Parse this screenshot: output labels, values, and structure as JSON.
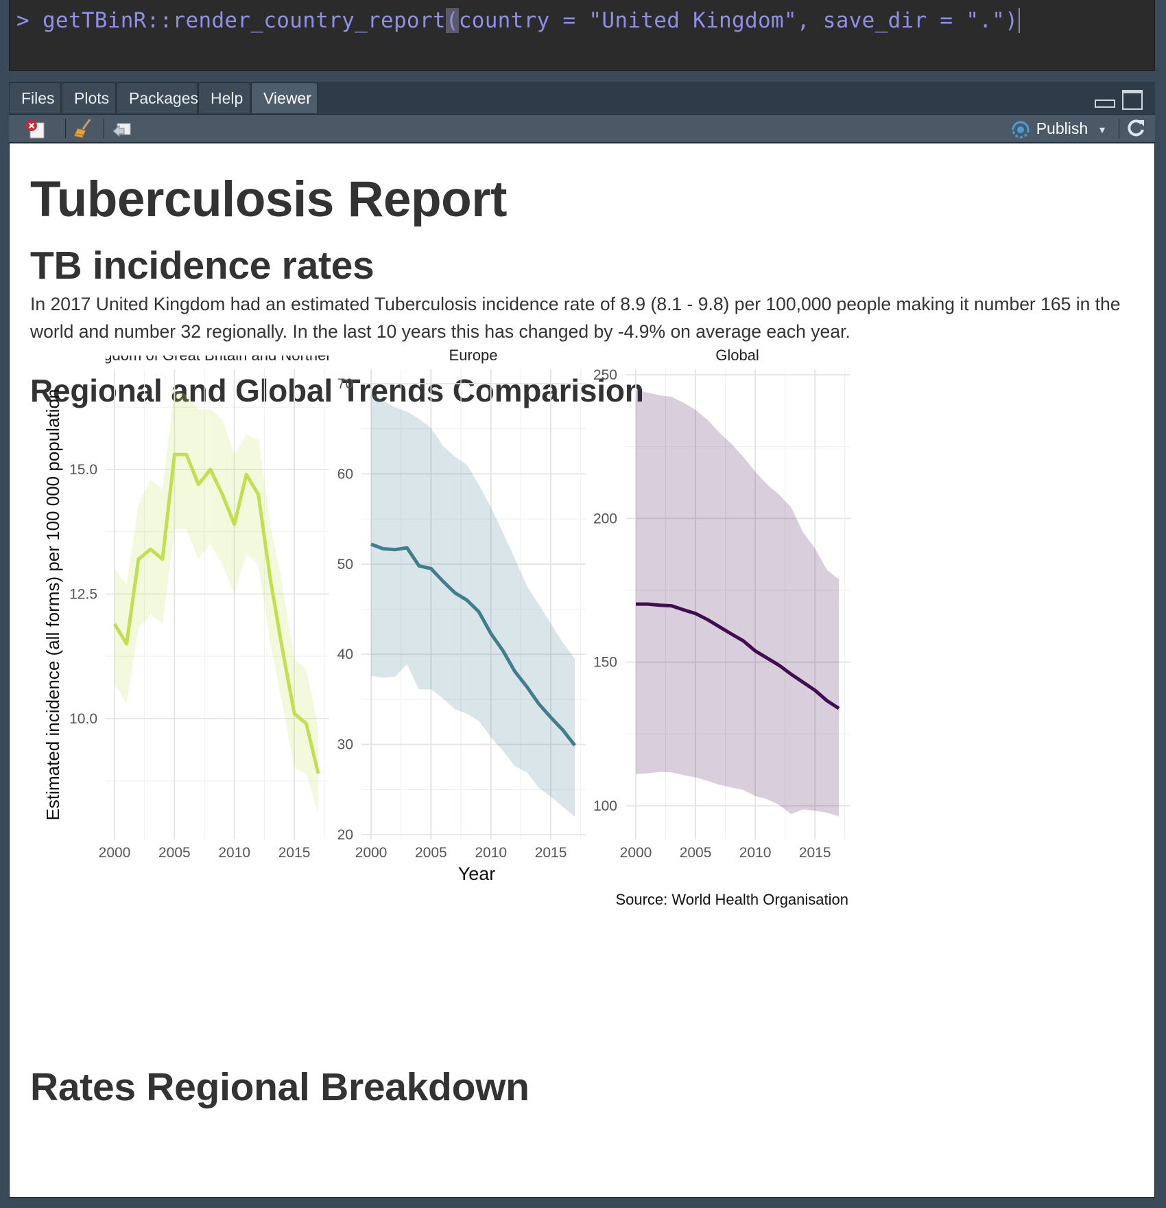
{
  "console": {
    "prompt": ">",
    "code_before": "getTBinR::render_country_report",
    "paren": "(",
    "code_after": "country = \"United Kingdom\", save_dir = \".\")"
  },
  "tabs": [
    "Files",
    "Plots",
    "Packages",
    "Help",
    "Viewer"
  ],
  "active_tab": "Viewer",
  "toolbar": {
    "publish_label": "Publish"
  },
  "report": {
    "title": "Tuberculosis Report",
    "section_incidence": "TB incidence rates",
    "summary": "In 2017 United Kingdom had an estimated Tuberculosis incidence rate of 8.9 (8.1 - 9.8) per 100,000 people making it number 165 in the world and number 32 regionally. In the last 10 years this has changed by -4.9% on average each year.",
    "section_trends": "Regional and Global Trends Comparision",
    "section_breakdown": "Rates Regional Breakdown"
  },
  "chart_data": [
    {
      "type": "line",
      "title": "United Kingdom of Great Britain and Northern Ireland",
      "title_visible": "ngdom of Great Britain and Northern",
      "ylabel": "Estimated incidence (all forms) per 100 000 population",
      "xlabel": "Year",
      "color": "#c2df4e",
      "ylim": [
        7.5,
        17.2
      ],
      "yticks": [
        "10.0",
        "12.5",
        "15.0"
      ],
      "xticks": [
        "2000",
        "2005",
        "2010",
        "2015"
      ],
      "x": [
        2000,
        2001,
        2002,
        2003,
        2004,
        2005,
        2006,
        2007,
        2008,
        2009,
        2010,
        2011,
        2012,
        2013,
        2014,
        2015,
        2016,
        2017
      ],
      "series": [
        {
          "values": [
            11.9,
            11.5,
            13.2,
            13.4,
            13.2,
            15.3,
            15.3,
            14.7,
            15.0,
            14.5,
            13.9,
            14.9,
            14.5,
            12.8,
            11.4,
            10.1,
            9.9,
            8.9
          ]
        },
        {
          "kind": "lower",
          "values": [
            10.7,
            10.3,
            11.8,
            12.1,
            11.9,
            13.8,
            13.8,
            13.2,
            13.5,
            13.1,
            12.5,
            13.3,
            13.1,
            11.5,
            10.3,
            9.0,
            8.9,
            8.1
          ]
        },
        {
          "kind": "upper",
          "values": [
            13.0,
            12.7,
            14.3,
            14.8,
            14.6,
            16.6,
            16.5,
            16.2,
            16.2,
            16.0,
            15.3,
            15.7,
            15.6,
            13.9,
            12.7,
            11.2,
            11.0,
            9.8
          ]
        }
      ]
    },
    {
      "type": "line",
      "title": "Europe",
      "color": "#3f7f8c",
      "ylim": [
        20,
        71.5
      ],
      "yticks": [
        "20",
        "30",
        "40",
        "50",
        "60",
        "70"
      ],
      "xticks": [
        "2000",
        "2005",
        "2010",
        "2015"
      ],
      "x": [
        2000,
        2001,
        2002,
        2003,
        2004,
        2005,
        2006,
        2007,
        2008,
        2009,
        2010,
        2011,
        2012,
        2013,
        2014,
        2015,
        2016,
        2017
      ],
      "series": [
        {
          "values": [
            52.2,
            51.7,
            51.6,
            51.8,
            49.8,
            49.5,
            48.1,
            46.8,
            46.0,
            44.7,
            42.3,
            40.4,
            38.1,
            36.4,
            34.5,
            33.0,
            31.6,
            29.9
          ]
        },
        {
          "kind": "lower",
          "values": [
            37.6,
            37.4,
            37.5,
            38.9,
            36.1,
            36.1,
            35.1,
            33.9,
            33.4,
            32.6,
            30.8,
            29.3,
            27.6,
            26.9,
            25.2,
            24.2,
            23.1,
            22.0
          ]
        },
        {
          "kind": "upper",
          "values": [
            69.0,
            68.1,
            67.4,
            66.9,
            66.1,
            65.1,
            63.1,
            61.9,
            61.0,
            58.8,
            56.3,
            53.5,
            50.6,
            47.6,
            45.5,
            43.4,
            41.3,
            39.5
          ]
        }
      ]
    },
    {
      "type": "line",
      "title": "Global",
      "color": "#3f0f4f",
      "ylim": [
        89,
        252
      ],
      "yticks": [
        "100",
        "150",
        "200",
        "250"
      ],
      "xticks": [
        "2000",
        "2005",
        "2010",
        "2015"
      ],
      "x": [
        2000,
        2001,
        2002,
        2003,
        2004,
        2005,
        2006,
        2007,
        2008,
        2009,
        2010,
        2011,
        2012,
        2013,
        2014,
        2015,
        2016,
        2017
      ],
      "series": [
        {
          "values": [
            170.2,
            170.2,
            169.8,
            169.6,
            168.2,
            166.9,
            164.8,
            162.3,
            159.8,
            157.4,
            153.9,
            151.4,
            148.9,
            145.8,
            143.0,
            140.2,
            136.6,
            133.9
          ]
        },
        {
          "kind": "lower",
          "values": [
            111.0,
            111.3,
            111.8,
            111.6,
            110.7,
            109.9,
            108.7,
            107.3,
            106.4,
            105.5,
            103.4,
            102.3,
            100.3,
            97.1,
            98.7,
            98.3,
            97.6,
            96.3
          ]
        },
        {
          "kind": "upper",
          "values": [
            244.6,
            243.8,
            242.9,
            242.3,
            240.3,
            237.8,
            234.3,
            229.9,
            226.0,
            221.4,
            216.3,
            211.8,
            208.3,
            203.9,
            195.1,
            189.6,
            182.1,
            178.8
          ]
        }
      ]
    }
  ],
  "source_caption": "Source: World Health Organisation",
  "colors": {
    "console_text": "#8f8fe8",
    "pane_chrome": "#2e3b49",
    "uk_line": "#c2df4e",
    "europe_line": "#3f7f8c",
    "global_line": "#3f0f4f"
  }
}
